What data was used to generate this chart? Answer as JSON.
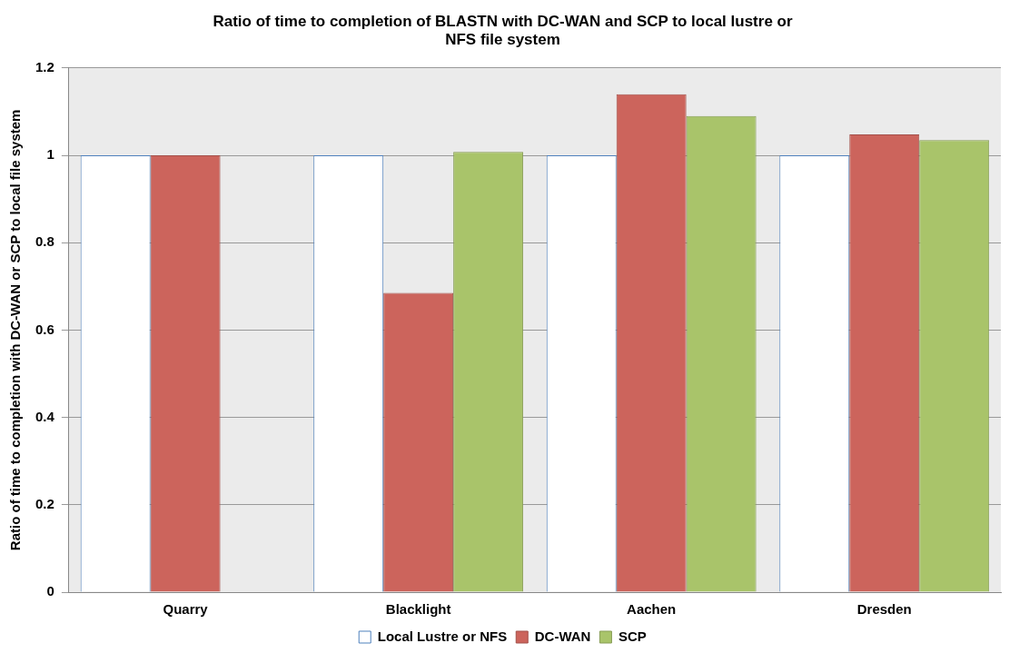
{
  "chart_data": {
    "type": "bar",
    "title": "Ratio of time to completion of BLASTN with DC-WAN and SCP to local lustre or NFS file system",
    "ylabel": "Ratio of time to completion with DC-WAN or SCP to local file system",
    "categories": [
      "Quarry",
      "Blacklight",
      "Aachen",
      "Dresden"
    ],
    "series": [
      {
        "name": "Local Lustre or NFS",
        "color": "#ffffff",
        "values": [
          1,
          1,
          1,
          1
        ]
      },
      {
        "name": "DC-WAN",
        "color": "#cc645c",
        "values": [
          1,
          0.685,
          1.14,
          1.048
        ]
      },
      {
        "name": "SCP",
        "color": "#a9c46a",
        "values": [
          null,
          1.008,
          1.09,
          1.035
        ]
      }
    ],
    "ylim": [
      0,
      1.2
    ],
    "yticks": [
      0,
      0.2,
      0.4,
      0.6,
      0.8,
      1,
      1.2
    ],
    "grid": "y",
    "legend": "bottom"
  }
}
